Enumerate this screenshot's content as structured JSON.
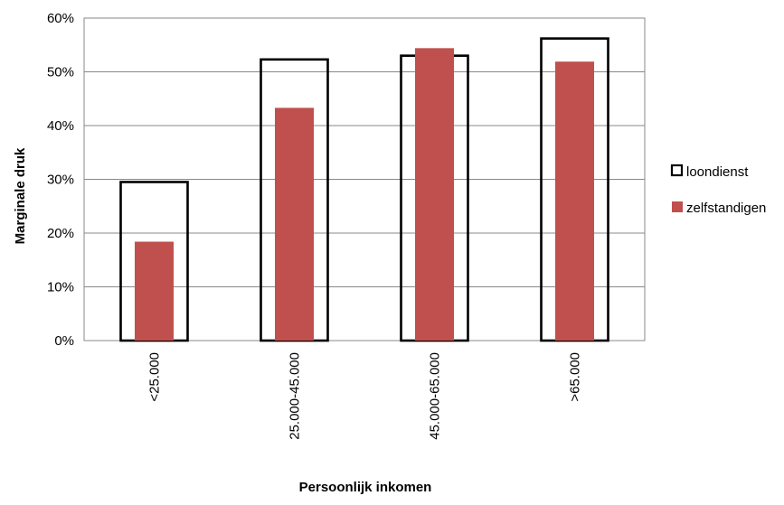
{
  "chart_data": {
    "type": "bar",
    "categories": [
      "<25.000",
      "25.000-45.000",
      "45.000-65.000",
      ">65.000"
    ],
    "series": [
      {
        "name": "loondienst",
        "values": [
          29.5,
          52.3,
          53.0,
          56.2
        ],
        "style": "outline",
        "color": "#000000"
      },
      {
        "name": "zelfstandigen",
        "values": [
          18.4,
          43.3,
          54.4,
          51.9
        ],
        "style": "filled",
        "color": "#C0504D"
      }
    ],
    "title": "",
    "xlabel": "Persoonlijk inkomen",
    "ylabel": "Marginale druk",
    "ylim": [
      0,
      60
    ],
    "yticks": [
      "0%",
      "10%",
      "20%",
      "30%",
      "40%",
      "50%",
      "60%"
    ],
    "grid": true,
    "legend": "right"
  }
}
